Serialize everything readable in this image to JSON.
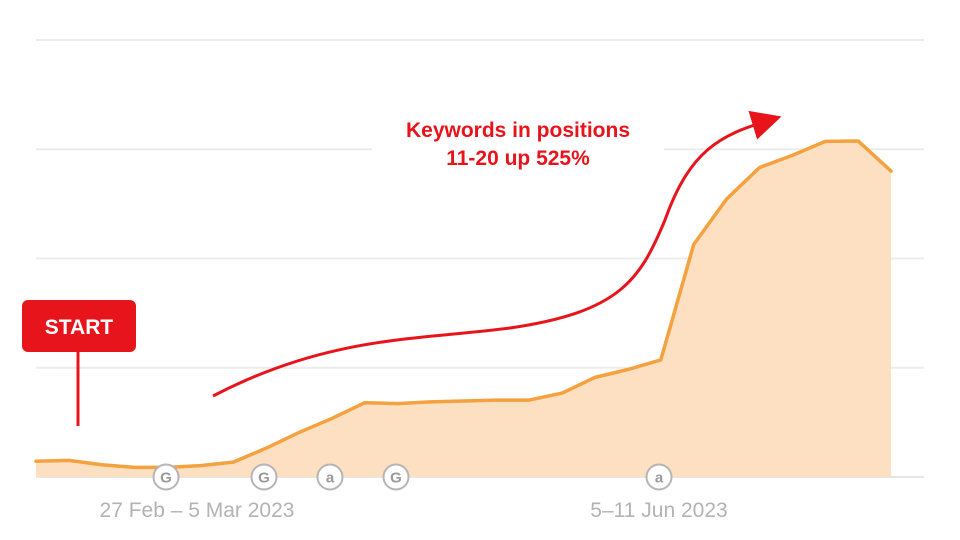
{
  "chart_data": {
    "type": "area",
    "x_tick_labels": [
      "27 Feb – 5 Mar 2023",
      "5–11 Jun 2023"
    ],
    "values": [
      3.6,
      3.8,
      2.8,
      2.2,
      2.2,
      2.6,
      3.4,
      6.6,
      10.2,
      13.4,
      17.0,
      16.8,
      17.2,
      17.4,
      17.6,
      17.6,
      19.2,
      22.8,
      24.6,
      26.8,
      53.2,
      63.6,
      70.8,
      73.6,
      76.8,
      76.9,
      70.0
    ],
    "ylim": [
      0,
      100
    ],
    "grid": true,
    "series_color": "#f4a13f",
    "fill_color": "#fde0c2",
    "event_markers": [
      {
        "glyph": "G"
      },
      {
        "glyph": "G"
      },
      {
        "glyph": "a"
      },
      {
        "glyph": "G"
      },
      {
        "glyph": "a"
      }
    ]
  },
  "annotations": {
    "headline_line1": "Keywords in positions",
    "headline_line2": "11-20 up 525%",
    "start_label": "START",
    "accent_color": "#e8141c"
  }
}
